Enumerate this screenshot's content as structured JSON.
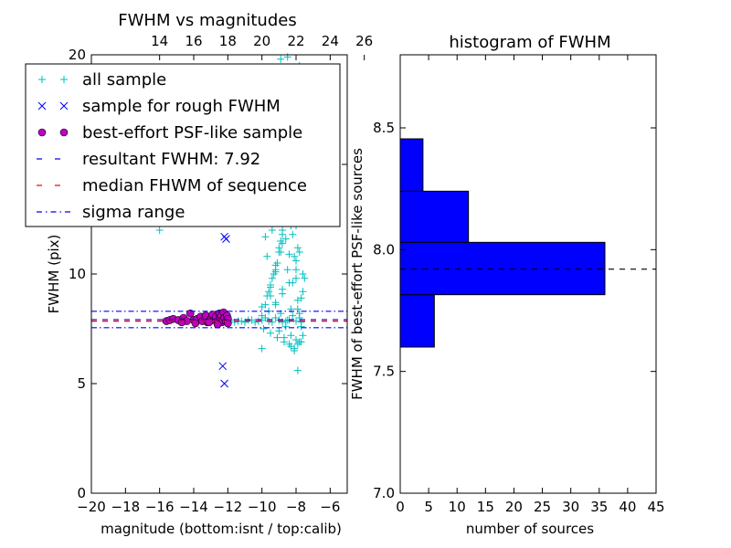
{
  "chart_data": [
    {
      "type": "scatter",
      "title": "FWHM vs magnitudes",
      "xlabel": "magnitude (bottom:isnt / top:calib)",
      "ylabel": "FWHM (pix)",
      "xlim": [
        -20,
        -5
      ],
      "ylim": [
        0,
        20
      ],
      "x_ticks": [
        "−20",
        "−18",
        "−16",
        "−14",
        "−12",
        "−10",
        "−8",
        "−6"
      ],
      "x_tick_values": [
        -20,
        -18,
        -16,
        -14,
        -12,
        -10,
        -8,
        -6
      ],
      "top_ticks": [
        "14",
        "16",
        "18",
        "20",
        "22",
        "24",
        "26"
      ],
      "top_tick_values": [
        -16,
        -14,
        -12,
        -10,
        -8,
        -6,
        -4
      ],
      "y_ticks": [
        "0",
        "5",
        "10",
        "15",
        "20"
      ],
      "y_tick_values": [
        0,
        5,
        10,
        15,
        20
      ],
      "legend": {
        "placement": "top-left",
        "entries": [
          {
            "label": "all sample",
            "marker": "plus",
            "color": "#00bfbf"
          },
          {
            "label": "sample for rough FWHM",
            "marker": "x",
            "color": "#0000ff"
          },
          {
            "label": "best-effort PSF-like sample",
            "marker": "circle",
            "color": "#bf00bf"
          },
          {
            "label": "resultant FWHM: 7.92",
            "marker": "dashed",
            "color": "#0000ff"
          },
          {
            "label": "median FHWM of sequence",
            "marker": "dashed",
            "color": "#ff0000"
          },
          {
            "label": "sigma range",
            "marker": "dashdot",
            "color": "#0000ff"
          }
        ]
      },
      "resultant_fwhm": 7.92,
      "median_fwhm": 7.85,
      "sigma_range": [
        7.55,
        8.3
      ],
      "colors": {
        "all": "#00bfbf",
        "rough": "#0000ff",
        "best": "#bf00bf",
        "median": "#ff0000"
      },
      "series": [
        {
          "name": "all sample",
          "marker": "plus",
          "x": [
            -12.0,
            -11.6,
            -11.2,
            -10.8,
            -10.4,
            -10.0,
            -9.6,
            -9.2,
            -8.8,
            -8.4,
            -8.0,
            -7.7,
            -11.8,
            -11.4,
            -11.0,
            -10.6,
            -10.2,
            -9.8,
            -9.4,
            -9.0,
            -8.6,
            -8.2,
            -7.8,
            -10.0,
            -9.7,
            -9.5,
            -9.3,
            -9.1,
            -9.0,
            -8.9,
            -8.8,
            -8.7,
            -8.6,
            -8.5,
            -8.4,
            -8.3,
            -8.2,
            -8.1,
            -8.0,
            -7.9,
            -7.8,
            -7.7,
            -7.6,
            -9.6,
            -9.4,
            -9.2,
            -9.0,
            -8.8,
            -8.6,
            -8.4,
            -8.2,
            -8.0,
            -7.8,
            -7.6,
            -9.8,
            -9.5,
            -9.2,
            -8.9,
            -8.6,
            -8.3,
            -8.0,
            -7.7,
            -9.3,
            -9.0,
            -8.7,
            -8.4,
            -8.1,
            -7.8,
            -7.5,
            -9.1,
            -8.8,
            -8.5,
            -8.2,
            -7.9,
            -8.9,
            -8.6,
            -8.3,
            -8.0,
            -7.7,
            -9.7,
            -9.4,
            -9.1,
            -8.8,
            -8.5,
            -8.2,
            -7.9,
            -9.5,
            -9.2,
            -8.9,
            -8.6,
            -8.3,
            -8.0,
            -7.7,
            -9.0,
            -8.7,
            -8.4,
            -8.1,
            -7.8,
            -9.9,
            -9.5,
            -9.1,
            -8.7,
            -8.3,
            -7.9,
            -8.7,
            -8.4,
            -8.1,
            -7.8,
            -8.5,
            -8.2,
            -7.9,
            -9.2,
            -8.8,
            -8.4,
            -8.0,
            -7.6,
            -10.0,
            -9.6,
            -9.2,
            -8.8,
            -8.4,
            -8.0,
            -7.9,
            -8.1,
            -8.3,
            -8.5,
            -8.0,
            -7.8,
            -9.8,
            -8.9,
            -8.7,
            -9.5,
            -9.0,
            -10.0,
            -16.0,
            -14.5,
            -13.5,
            -12.5,
            -15.5,
            -12.1,
            -11.9
          ],
          "y": [
            7.9,
            7.8,
            7.85,
            7.9,
            7.8,
            7.9,
            7.85,
            8.0,
            7.8,
            7.9,
            7.85,
            7.8,
            7.9,
            7.85,
            7.8,
            7.9,
            7.85,
            8.0,
            7.8,
            7.9,
            7.85,
            8.1,
            8.0,
            8.5,
            9.0,
            9.5,
            10.0,
            10.5,
            11.0,
            11.5,
            12.0,
            12.5,
            13.0,
            13.5,
            14.0,
            12.8,
            11.8,
            10.8,
            9.8,
            8.8,
            8.2,
            7.6,
            7.2,
            9.2,
            9.8,
            10.4,
            11.2,
            11.8,
            12.4,
            13.1,
            13.8,
            12.2,
            11.0,
            9.2,
            8.6,
            9.4,
            10.2,
            11.0,
            11.6,
            12.2,
            10.6,
            8.9,
            13.4,
            14.2,
            14.8,
            15.2,
            14.6,
            13.5,
            9.8,
            12.6,
            11.4,
            10.2,
            9.6,
            8.4,
            15.8,
            16.2,
            16.0,
            15.4,
            14.0,
            10.8,
            12.0,
            13.2,
            14.4,
            15.0,
            13.6,
            11.2,
            9.0,
            8.6,
            8.2,
            7.6,
            7.2,
            7.0,
            6.9,
            7.4,
            7.1,
            6.8,
            6.6,
            6.9,
            7.5,
            7.3,
            7.1,
            6.9,
            6.7,
            6.8,
            17.0,
            17.5,
            18.0,
            19.5,
            19.9,
            18.8,
            16.6,
            10.1,
            9.3,
            10.9,
            12.3,
            10.0,
            8.1,
            8.3,
            8.7,
            9.1,
            9.6,
            10.2,
            5.6,
            6.5,
            8.4,
            7.9,
            14.8,
            16.9,
            11.7,
            19.8,
            15.6,
            13.9,
            12.7,
            6.6,
            12.0,
            13.0,
            12.9,
            14.0,
            13.3,
            15.7,
            16.1
          ]
        },
        {
          "name": "sample for rough FWHM",
          "marker": "x",
          "x": [
            -12.2,
            -12.1,
            -12.3,
            -12.2
          ],
          "y": [
            11.7,
            11.6,
            5.8,
            5.0
          ]
        },
        {
          "name": "best-effort PSF-like sample",
          "marker": "circle",
          "x": [
            -15.6,
            -15.4,
            -15.2,
            -14.9,
            -14.6,
            -14.4,
            -14.2,
            -14.0,
            -13.8,
            -13.6,
            -13.5,
            -13.3,
            -13.2,
            -13.0,
            -12.9,
            -12.8,
            -12.7,
            -12.6,
            -12.5,
            -12.45,
            -12.4,
            -12.35,
            -12.3,
            -12.25,
            -12.2,
            -12.1,
            -12.05,
            -12.0,
            -12.0,
            -14.7,
            -13.9,
            -13.1,
            -12.6
          ],
          "y": [
            7.85,
            7.9,
            7.95,
            7.9,
            8.0,
            7.85,
            8.2,
            7.9,
            7.95,
            8.05,
            7.85,
            8.1,
            7.8,
            7.95,
            8.15,
            7.9,
            8.05,
            7.85,
            8.2,
            7.95,
            8.1,
            7.8,
            7.9,
            8.25,
            8.0,
            7.85,
            8.1,
            7.95,
            7.75,
            7.8,
            7.75,
            7.8,
            7.7
          ]
        }
      ]
    },
    {
      "type": "bar",
      "orientation": "horizontal",
      "title": "histogram of FWHM",
      "xlabel": "number of sources",
      "ylabel": "FWHM of best-effort PSF-like sources",
      "xlim": [
        0,
        45
      ],
      "ylim": [
        7.0,
        8.8
      ],
      "x_ticks": [
        "0",
        "5",
        "10",
        "15",
        "20",
        "25",
        "30",
        "35",
        "40",
        "45"
      ],
      "x_tick_values": [
        0,
        5,
        10,
        15,
        20,
        25,
        30,
        35,
        40,
        45
      ],
      "y_ticks": [
        "7.0",
        "7.5",
        "8.0",
        "8.5"
      ],
      "y_tick_values": [
        7.0,
        7.5,
        8.0,
        8.5
      ],
      "bar_color": "#0000ff",
      "reference_line": 7.92,
      "bins": [
        {
          "low": 7.6,
          "high": 7.815,
          "count": 6
        },
        {
          "low": 7.815,
          "high": 8.03,
          "count": 36
        },
        {
          "low": 8.03,
          "high": 8.24,
          "count": 12
        },
        {
          "low": 8.24,
          "high": 8.455,
          "count": 4
        }
      ]
    }
  ]
}
